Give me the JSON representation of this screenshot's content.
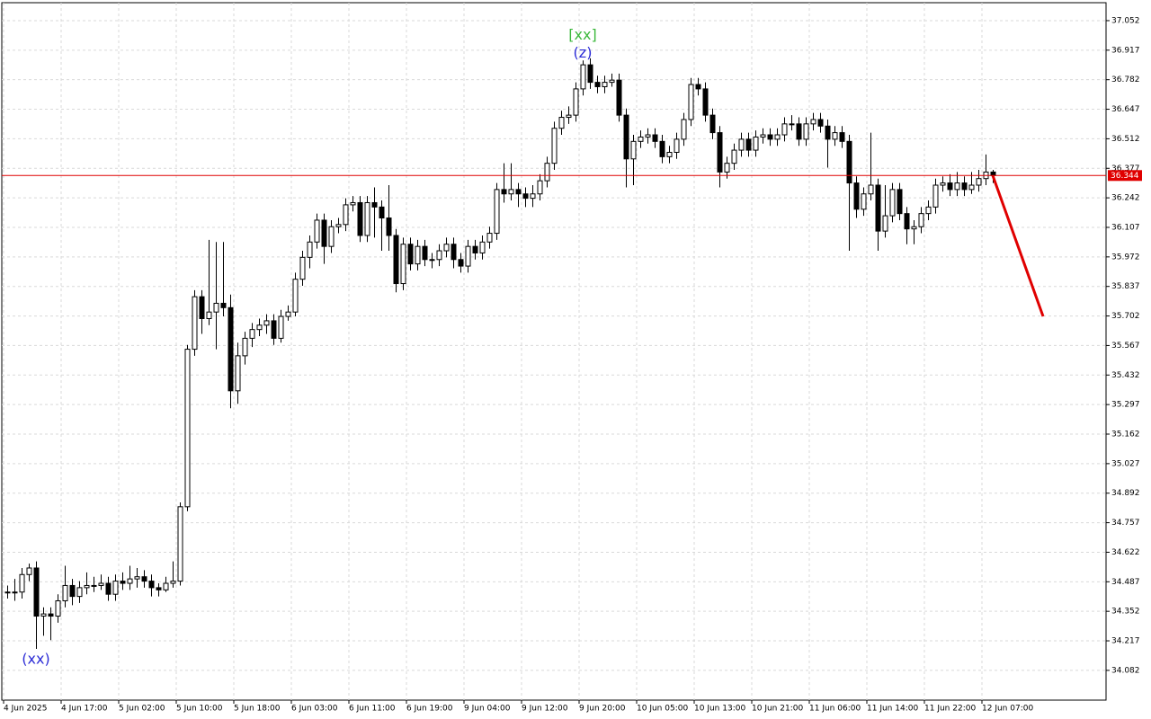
{
  "chart_data": {
    "type": "candlestick",
    "categories": [
      "4 Jun 2025",
      null,
      null,
      null,
      null,
      null,
      null,
      null,
      "4 Jun 17:00",
      null,
      null,
      null,
      null,
      null,
      null,
      null,
      "5 Jun 02:00",
      null,
      null,
      null,
      null,
      null,
      null,
      null,
      "5 Jun 10:00",
      null,
      null,
      null,
      null,
      null,
      null,
      null,
      "5 Jun 18:00",
      null,
      null,
      null,
      null,
      null,
      null,
      null,
      "6 Jun 03:00",
      null,
      null,
      null,
      null,
      null,
      null,
      null,
      "6 Jun 11:00",
      null,
      null,
      null,
      null,
      null,
      null,
      null,
      "6 Jun 19:00",
      null,
      null,
      null,
      null,
      null,
      null,
      null,
      "9 Jun 04:00",
      null,
      null,
      null,
      null,
      null,
      null,
      null,
      "9 Jun 12:00",
      null,
      null,
      null,
      null,
      null,
      null,
      null,
      "9 Jun 20:00",
      null,
      null,
      null,
      null,
      null,
      null,
      null,
      "10 Jun 05:00",
      null,
      null,
      null,
      null,
      null,
      null,
      null,
      "10 Jun 13:00",
      null,
      null,
      null,
      null,
      null,
      null,
      null,
      "10 Jun 21:00",
      null,
      null,
      null,
      null,
      null,
      null,
      null,
      "11 Jun 06:00",
      null,
      null,
      null,
      null,
      null,
      null,
      null,
      "11 Jun 14:00",
      null,
      null,
      null,
      null,
      null,
      null,
      null,
      "11 Jun 22:00",
      null,
      null,
      null,
      null,
      null,
      null,
      null,
      "12 Jun 07:00",
      null
    ],
    "open": [
      34.44,
      34.44,
      34.44,
      34.52,
      34.55,
      34.33,
      34.34,
      34.33,
      34.4,
      34.47,
      34.42,
      34.46,
      34.47,
      34.47,
      34.48,
      34.43,
      34.49,
      34.48,
      34.5,
      34.51,
      34.49,
      34.46,
      34.45,
      34.48,
      34.49,
      34.83,
      35.55,
      35.79,
      35.69,
      35.72,
      35.76,
      35.74,
      35.36,
      35.52,
      35.6,
      35.64,
      35.66,
      35.68,
      35.6,
      35.7,
      35.72,
      35.87,
      35.97,
      36.04,
      36.14,
      36.02,
      36.11,
      36.12,
      36.21,
      36.22,
      36.07,
      36.22,
      36.2,
      36.15,
      36.07,
      35.85,
      36.03,
      35.94,
      36.02,
      35.96,
      35.96,
      36.0,
      36.03,
      35.96,
      35.93,
      36.02,
      35.99,
      36.04,
      36.08,
      36.28,
      36.26,
      36.28,
      36.26,
      36.24,
      36.26,
      36.32,
      36.4,
      36.56,
      36.61,
      36.62,
      36.74,
      36.85,
      36.77,
      36.75,
      36.77,
      36.78,
      36.62,
      36.42,
      36.5,
      36.52,
      36.53,
      36.5,
      36.43,
      36.45,
      36.51,
      36.6,
      36.76,
      36.74,
      36.62,
      36.54,
      36.36,
      36.4,
      36.46,
      36.51,
      36.46,
      36.52,
      36.53,
      36.51,
      36.53,
      36.58,
      36.58,
      36.51,
      36.58,
      36.6,
      36.57,
      36.51,
      36.54,
      36.5,
      36.31,
      36.19,
      36.26,
      36.3,
      36.09,
      36.16,
      36.28,
      36.17,
      36.1,
      36.11,
      36.17,
      36.2,
      36.3,
      36.31,
      36.28,
      36.31,
      36.28,
      36.3,
      36.33,
      36.36
    ],
    "high": [
      34.47,
      34.5,
      34.55,
      34.57,
      34.58,
      34.37,
      34.37,
      34.43,
      34.56,
      34.5,
      34.49,
      34.53,
      34.51,
      34.52,
      34.51,
      34.52,
      34.53,
      34.56,
      34.55,
      34.54,
      34.52,
      34.48,
      34.51,
      34.58,
      34.85,
      35.57,
      35.82,
      35.82,
      36.05,
      36.04,
      36.04,
      35.8,
      35.58,
      35.63,
      35.67,
      35.69,
      35.71,
      35.71,
      35.73,
      35.75,
      35.9,
      36.0,
      36.07,
      36.17,
      36.17,
      36.14,
      36.15,
      36.24,
      36.25,
      36.25,
      36.25,
      36.29,
      36.23,
      36.3,
      36.1,
      36.06,
      36.06,
      36.05,
      36.05,
      35.99,
      36.03,
      36.06,
      36.06,
      35.99,
      36.05,
      36.05,
      36.07,
      36.11,
      36.31,
      36.4,
      36.4,
      36.31,
      36.29,
      36.3,
      36.35,
      36.43,
      36.59,
      36.64,
      36.66,
      36.77,
      36.87,
      36.88,
      36.8,
      36.8,
      36.81,
      36.81,
      36.65,
      36.53,
      36.55,
      36.56,
      36.56,
      36.53,
      36.48,
      36.54,
      36.63,
      36.79,
      36.79,
      36.77,
      36.65,
      36.57,
      36.43,
      36.49,
      36.54,
      36.54,
      36.55,
      36.56,
      36.56,
      36.56,
      36.61,
      36.62,
      36.61,
      36.61,
      36.63,
      36.63,
      36.6,
      36.57,
      36.57,
      36.53,
      36.34,
      36.29,
      36.54,
      36.33,
      36.3,
      36.31,
      36.31,
      36.2,
      36.14,
      36.2,
      36.23,
      36.33,
      36.34,
      36.35,
      36.36,
      36.34,
      36.36,
      36.37,
      36.44,
      36.37
    ],
    "low": [
      34.41,
      34.4,
      34.41,
      34.49,
      34.18,
      34.24,
      34.22,
      34.3,
      34.37,
      34.38,
      34.39,
      34.43,
      34.44,
      34.45,
      34.4,
      34.4,
      34.45,
      34.45,
      34.46,
      34.46,
      34.42,
      34.42,
      34.44,
      34.46,
      34.47,
      34.81,
      35.52,
      35.62,
      35.66,
      35.55,
      35.7,
      35.28,
      35.3,
      35.48,
      35.56,
      35.61,
      35.62,
      35.57,
      35.58,
      35.68,
      35.7,
      35.84,
      35.92,
      36.01,
      35.94,
      35.99,
      36.08,
      36.09,
      36.18,
      36.04,
      36.04,
      36.06,
      36.0,
      36.0,
      35.81,
      35.82,
      35.91,
      35.91,
      35.93,
      35.92,
      35.93,
      35.97,
      35.92,
      35.9,
      35.9,
      35.96,
      35.96,
      36.01,
      36.05,
      36.22,
      36.23,
      36.2,
      36.2,
      36.2,
      36.23,
      36.29,
      36.37,
      36.53,
      36.58,
      36.59,
      36.71,
      36.74,
      36.72,
      36.72,
      36.75,
      36.59,
      36.29,
      36.3,
      36.47,
      36.49,
      36.47,
      36.4,
      36.4,
      36.42,
      36.48,
      36.57,
      36.71,
      36.59,
      36.51,
      36.29,
      36.33,
      36.37,
      36.43,
      36.43,
      36.43,
      36.49,
      36.48,
      36.48,
      36.5,
      36.55,
      36.48,
      36.48,
      36.55,
      36.54,
      36.38,
      36.48,
      36.47,
      36.0,
      36.15,
      36.16,
      36.23,
      36.0,
      36.06,
      36.13,
      36.14,
      36.03,
      36.03,
      36.08,
      36.14,
      36.17,
      36.27,
      36.25,
      36.25,
      36.25,
      36.26,
      36.27,
      36.3,
      36.31
    ],
    "close": [
      34.44,
      34.44,
      34.52,
      34.55,
      34.33,
      34.34,
      34.33,
      34.4,
      34.47,
      34.42,
      34.46,
      34.47,
      34.47,
      34.48,
      34.43,
      34.49,
      34.48,
      34.5,
      34.51,
      34.49,
      34.46,
      34.45,
      34.48,
      34.49,
      34.83,
      35.55,
      35.79,
      35.69,
      35.72,
      35.76,
      35.74,
      35.36,
      35.52,
      35.6,
      35.64,
      35.66,
      35.68,
      35.6,
      35.7,
      35.72,
      35.87,
      35.97,
      36.04,
      36.14,
      36.02,
      36.11,
      36.12,
      36.21,
      36.22,
      36.07,
      36.22,
      36.2,
      36.15,
      36.07,
      35.85,
      36.03,
      35.94,
      36.02,
      35.96,
      35.96,
      36.0,
      36.03,
      35.96,
      35.93,
      36.02,
      35.99,
      36.04,
      36.08,
      36.28,
      36.26,
      36.28,
      36.26,
      36.24,
      36.26,
      36.32,
      36.4,
      36.56,
      36.61,
      36.62,
      36.74,
      36.85,
      36.77,
      36.75,
      36.77,
      36.78,
      36.62,
      36.42,
      36.5,
      36.52,
      36.53,
      36.5,
      36.43,
      36.45,
      36.51,
      36.6,
      36.76,
      36.74,
      36.62,
      36.54,
      36.36,
      36.4,
      36.46,
      36.51,
      36.46,
      36.52,
      36.53,
      36.51,
      36.53,
      36.58,
      36.58,
      36.51,
      36.58,
      36.6,
      36.57,
      36.51,
      36.54,
      36.5,
      36.31,
      36.19,
      36.26,
      36.3,
      36.09,
      36.16,
      36.28,
      36.17,
      36.1,
      36.11,
      36.17,
      36.2,
      36.3,
      36.31,
      36.28,
      36.31,
      36.28,
      36.3,
      36.33,
      36.36,
      36.344
    ],
    "last_price": 36.344,
    "last_price_color": "#e00000",
    "forecast": {
      "x": [
        137,
        144
      ],
      "values": [
        36.344,
        35.7
      ],
      "color": "#e00000"
    },
    "annotations": [
      {
        "text": "[xx]",
        "index": 80,
        "color": "#3cb83c",
        "position": "above",
        "offset": 2
      },
      {
        "text": "(z)",
        "index": 80,
        "color": "#2b2bd6",
        "position": "above",
        "offset": 1
      },
      {
        "text": "(xx)",
        "index": 4,
        "color": "#2b2bd6",
        "position": "below",
        "offset": 1
      }
    ],
    "ylim": [
      33.946,
      37.134
    ],
    "yticks": [
      37.052,
      36.917,
      36.782,
      36.647,
      36.512,
      36.377,
      36.242,
      36.107,
      35.972,
      35.837,
      35.702,
      35.567,
      35.432,
      35.297,
      35.162,
      35.027,
      34.892,
      34.757,
      34.622,
      34.487,
      34.352,
      34.217,
      34.082
    ],
    "grid": true
  }
}
